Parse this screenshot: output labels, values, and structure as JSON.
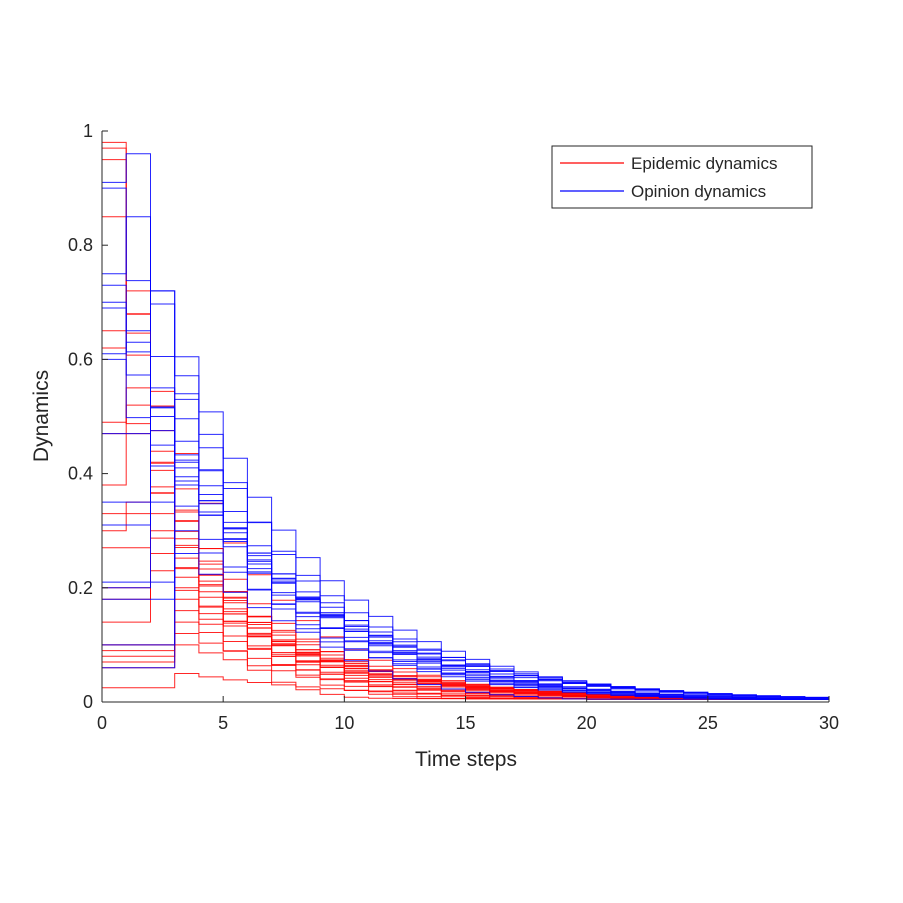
{
  "chart_data": {
    "type": "line",
    "style": "stairs",
    "xlabel": "Time steps",
    "ylabel": "Dynamics",
    "xlim": [
      0,
      30
    ],
    "ylim": [
      0,
      1
    ],
    "xticks": [
      0,
      5,
      10,
      15,
      20,
      25,
      30
    ],
    "yticks": [
      0,
      0.2,
      0.4,
      0.6,
      0.8,
      1
    ],
    "xtick_labels": [
      "0",
      "5",
      "10",
      "15",
      "20",
      "25",
      "30"
    ],
    "ytick_labels": [
      "0",
      "0.2",
      "0.4",
      "0.6",
      "0.8",
      "1"
    ],
    "grid": false,
    "legend_position": "top-right",
    "legend": [
      {
        "label": "Epidemic dynamics",
        "color": "#ff0000"
      },
      {
        "label": "Opinion dynamics",
        "color": "#0000ff"
      }
    ],
    "groups": [
      {
        "name": "Epidemic dynamics",
        "color": "#ff0000",
        "series": [
          {
            "y0": 0.98,
            "peak": 0,
            "decay": 0.62
          },
          {
            "y0": 0.97,
            "peak": 0,
            "decay": 0.7
          },
          {
            "y0": 0.95,
            "peak": 0,
            "decay": 0.68
          },
          {
            "y0": 0.85,
            "peak": 0,
            "decay": 0.8
          },
          {
            "y0": 0.65,
            "peak": 0,
            "decay": 0.75
          },
          {
            "y0": 0.62,
            "peak": 1,
            "decay": 0.72,
            "y1": 0.72
          },
          {
            "y0": 0.49,
            "peak": 1,
            "decay": 0.76,
            "y1": 0.55
          },
          {
            "y0": 0.47,
            "peak": 1,
            "decay": 0.78,
            "y1": 0.52
          },
          {
            "y0": 0.38,
            "peak": 1,
            "decay": 0.78,
            "y1": 0.47
          },
          {
            "y0": 0.33,
            "peak": 2,
            "decay": 0.8,
            "y2": 0.42
          },
          {
            "y0": 0.3,
            "peak": 1,
            "decay": 0.82,
            "y1": 0.35
          },
          {
            "y0": 0.27,
            "peak": 2,
            "decay": 0.82,
            "y2": 0.33
          },
          {
            "y0": 0.2,
            "peak": 2,
            "decay": 0.84,
            "y2": 0.3
          },
          {
            "y0": 0.18,
            "peak": 2,
            "decay": 0.84,
            "y2": 0.26
          },
          {
            "y0": 0.14,
            "peak": 2,
            "decay": 0.85,
            "y2": 0.23
          },
          {
            "y0": 0.1,
            "peak": 3,
            "decay": 0.84,
            "y3": 0.2
          },
          {
            "y0": 0.08,
            "peak": 3,
            "decay": 0.86,
            "y3": 0.18
          },
          {
            "y0": 0.06,
            "peak": 3,
            "decay": 0.85,
            "y3": 0.16
          },
          {
            "y0": 0.1,
            "peak": 3,
            "decay": 0.87,
            "y3": 0.14
          },
          {
            "y0": 0.025,
            "peak": 3,
            "decay": 0.88,
            "y3": 0.05
          },
          {
            "y0": 0.09,
            "peak": 3,
            "decay": 0.86,
            "y3": 0.12
          },
          {
            "y0": 0.07,
            "peak": 3,
            "decay": 0.86,
            "y3": 0.1
          }
        ]
      },
      {
        "name": "Opinion dynamics",
        "color": "#0000ff",
        "series": [
          {
            "y0": 0.91,
            "peak": 1,
            "decay": 0.75,
            "y1": 0.96
          },
          {
            "y0": 0.9,
            "peak": 0,
            "decay": 0.82
          },
          {
            "y0": 0.75,
            "peak": 1,
            "decay": 0.82,
            "y1": 0.85
          },
          {
            "y0": 0.73,
            "peak": 0,
            "decay": 0.84
          },
          {
            "y0": 0.7,
            "peak": 2,
            "decay": 0.84,
            "y1": 0.65,
            "y2": 0.72
          },
          {
            "y0": 0.69,
            "peak": 0,
            "decay": 0.83
          },
          {
            "y0": 0.61,
            "peak": 1,
            "decay": 0.82,
            "y1": 0.63
          },
          {
            "y0": 0.6,
            "peak": 0,
            "decay": 0.83
          },
          {
            "y0": 0.47,
            "peak": 2,
            "decay": 0.83,
            "y2": 0.55
          },
          {
            "y0": 0.35,
            "peak": 3,
            "decay": 0.84,
            "y3": 0.53
          },
          {
            "y0": 0.31,
            "peak": 2,
            "decay": 0.84,
            "y2": 0.5
          },
          {
            "y0": 0.21,
            "peak": 3,
            "decay": 0.86,
            "y3": 0.41
          },
          {
            "y0": 0.2,
            "peak": 2,
            "decay": 0.86,
            "y2": 0.45
          },
          {
            "y0": 0.18,
            "peak": 3,
            "decay": 0.86,
            "y3": 0.38
          },
          {
            "y0": 0.06,
            "peak": 3,
            "decay": 0.87,
            "y3": 0.3
          },
          {
            "y0": 0.1,
            "peak": 3,
            "decay": 0.86,
            "y3": 0.26
          }
        ]
      }
    ]
  }
}
